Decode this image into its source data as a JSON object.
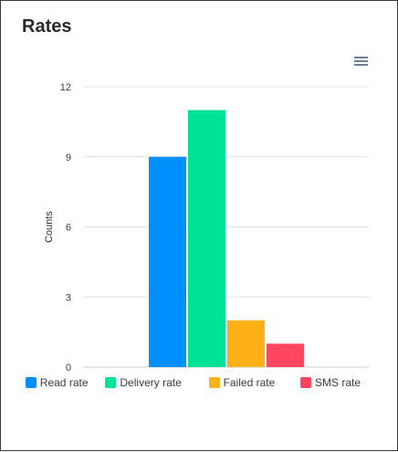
{
  "card": {
    "title": "Rates"
  },
  "icons": {
    "menu": "hamburger-menu-icon"
  },
  "chart_data": {
    "type": "bar",
    "categories": [
      "Read rate",
      "Delivery rate",
      "Failed rate",
      "SMS rate"
    ],
    "values": [
      9,
      11,
      2,
      1
    ],
    "colors": [
      "#008ffb",
      "#00e396",
      "#feb019",
      "#ff4560"
    ],
    "ylabel": "Counts",
    "ylim": [
      0,
      12
    ],
    "yticks": [
      0,
      3,
      6,
      9,
      12
    ],
    "legend": {
      "position": "bottom",
      "labels": [
        "Read rate",
        "Delivery rate",
        "Failed rate",
        "SMS rate"
      ]
    },
    "grid": true
  }
}
